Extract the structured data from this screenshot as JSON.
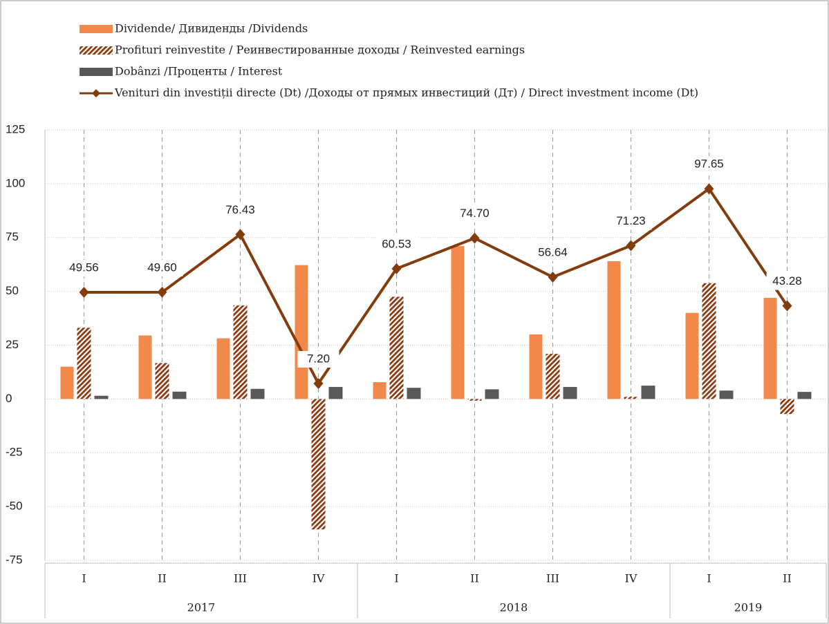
{
  "chart_data": {
    "type": "combo",
    "categories": [
      "I",
      "II",
      "III",
      "IV",
      "I",
      "II",
      "III",
      "IV",
      "I",
      "II"
    ],
    "groups": [
      {
        "name": "2017",
        "span": 4
      },
      {
        "name": "2018",
        "span": 4
      },
      {
        "name": "2019",
        "span": 2
      }
    ],
    "series": [
      {
        "name": "Dividende/ Дивиденды /Dividends",
        "type": "bar",
        "color": "#f0894a",
        "values": [
          15.0,
          29.5,
          28.2,
          62.2,
          7.8,
          71.0,
          30.0,
          64.0,
          40.0,
          47.0
        ]
      },
      {
        "name": "Profituri reinvestite / Реинвестированные доходы / Reinvested earnings",
        "type": "bar",
        "pattern": "hatch",
        "color": "#8b3a10",
        "values": [
          33.1,
          16.7,
          43.5,
          -60.6,
          47.5,
          -0.8,
          21.0,
          1.0,
          53.8,
          -7.0
        ]
      },
      {
        "name": "Dobânzi /Проценты / Interest",
        "type": "bar",
        "color": "#595959",
        "values": [
          1.5,
          3.4,
          4.7,
          5.6,
          5.2,
          4.5,
          5.6,
          6.2,
          3.9,
          3.3
        ]
      },
      {
        "name": "Venituri din investiții directe (Dt)  /Доходы от прямых инвестиций (Дт) / Direct investment income (Dt)",
        "type": "line",
        "color": "#843c0c",
        "values": [
          49.56,
          49.6,
          76.43,
          7.2,
          60.53,
          74.7,
          56.64,
          71.23,
          97.65,
          43.28
        ],
        "value_labels": [
          "49.56",
          "49.60",
          "76.43",
          "7.20",
          "60.53",
          "74.70",
          "56.64",
          "71.23",
          "97.65",
          "43.28"
        ]
      }
    ],
    "ylim": [
      -75,
      125
    ],
    "yticks": [
      -75,
      -50,
      -25,
      0,
      25,
      50,
      75,
      100,
      125
    ],
    "grid": true,
    "legend": "top-left"
  }
}
